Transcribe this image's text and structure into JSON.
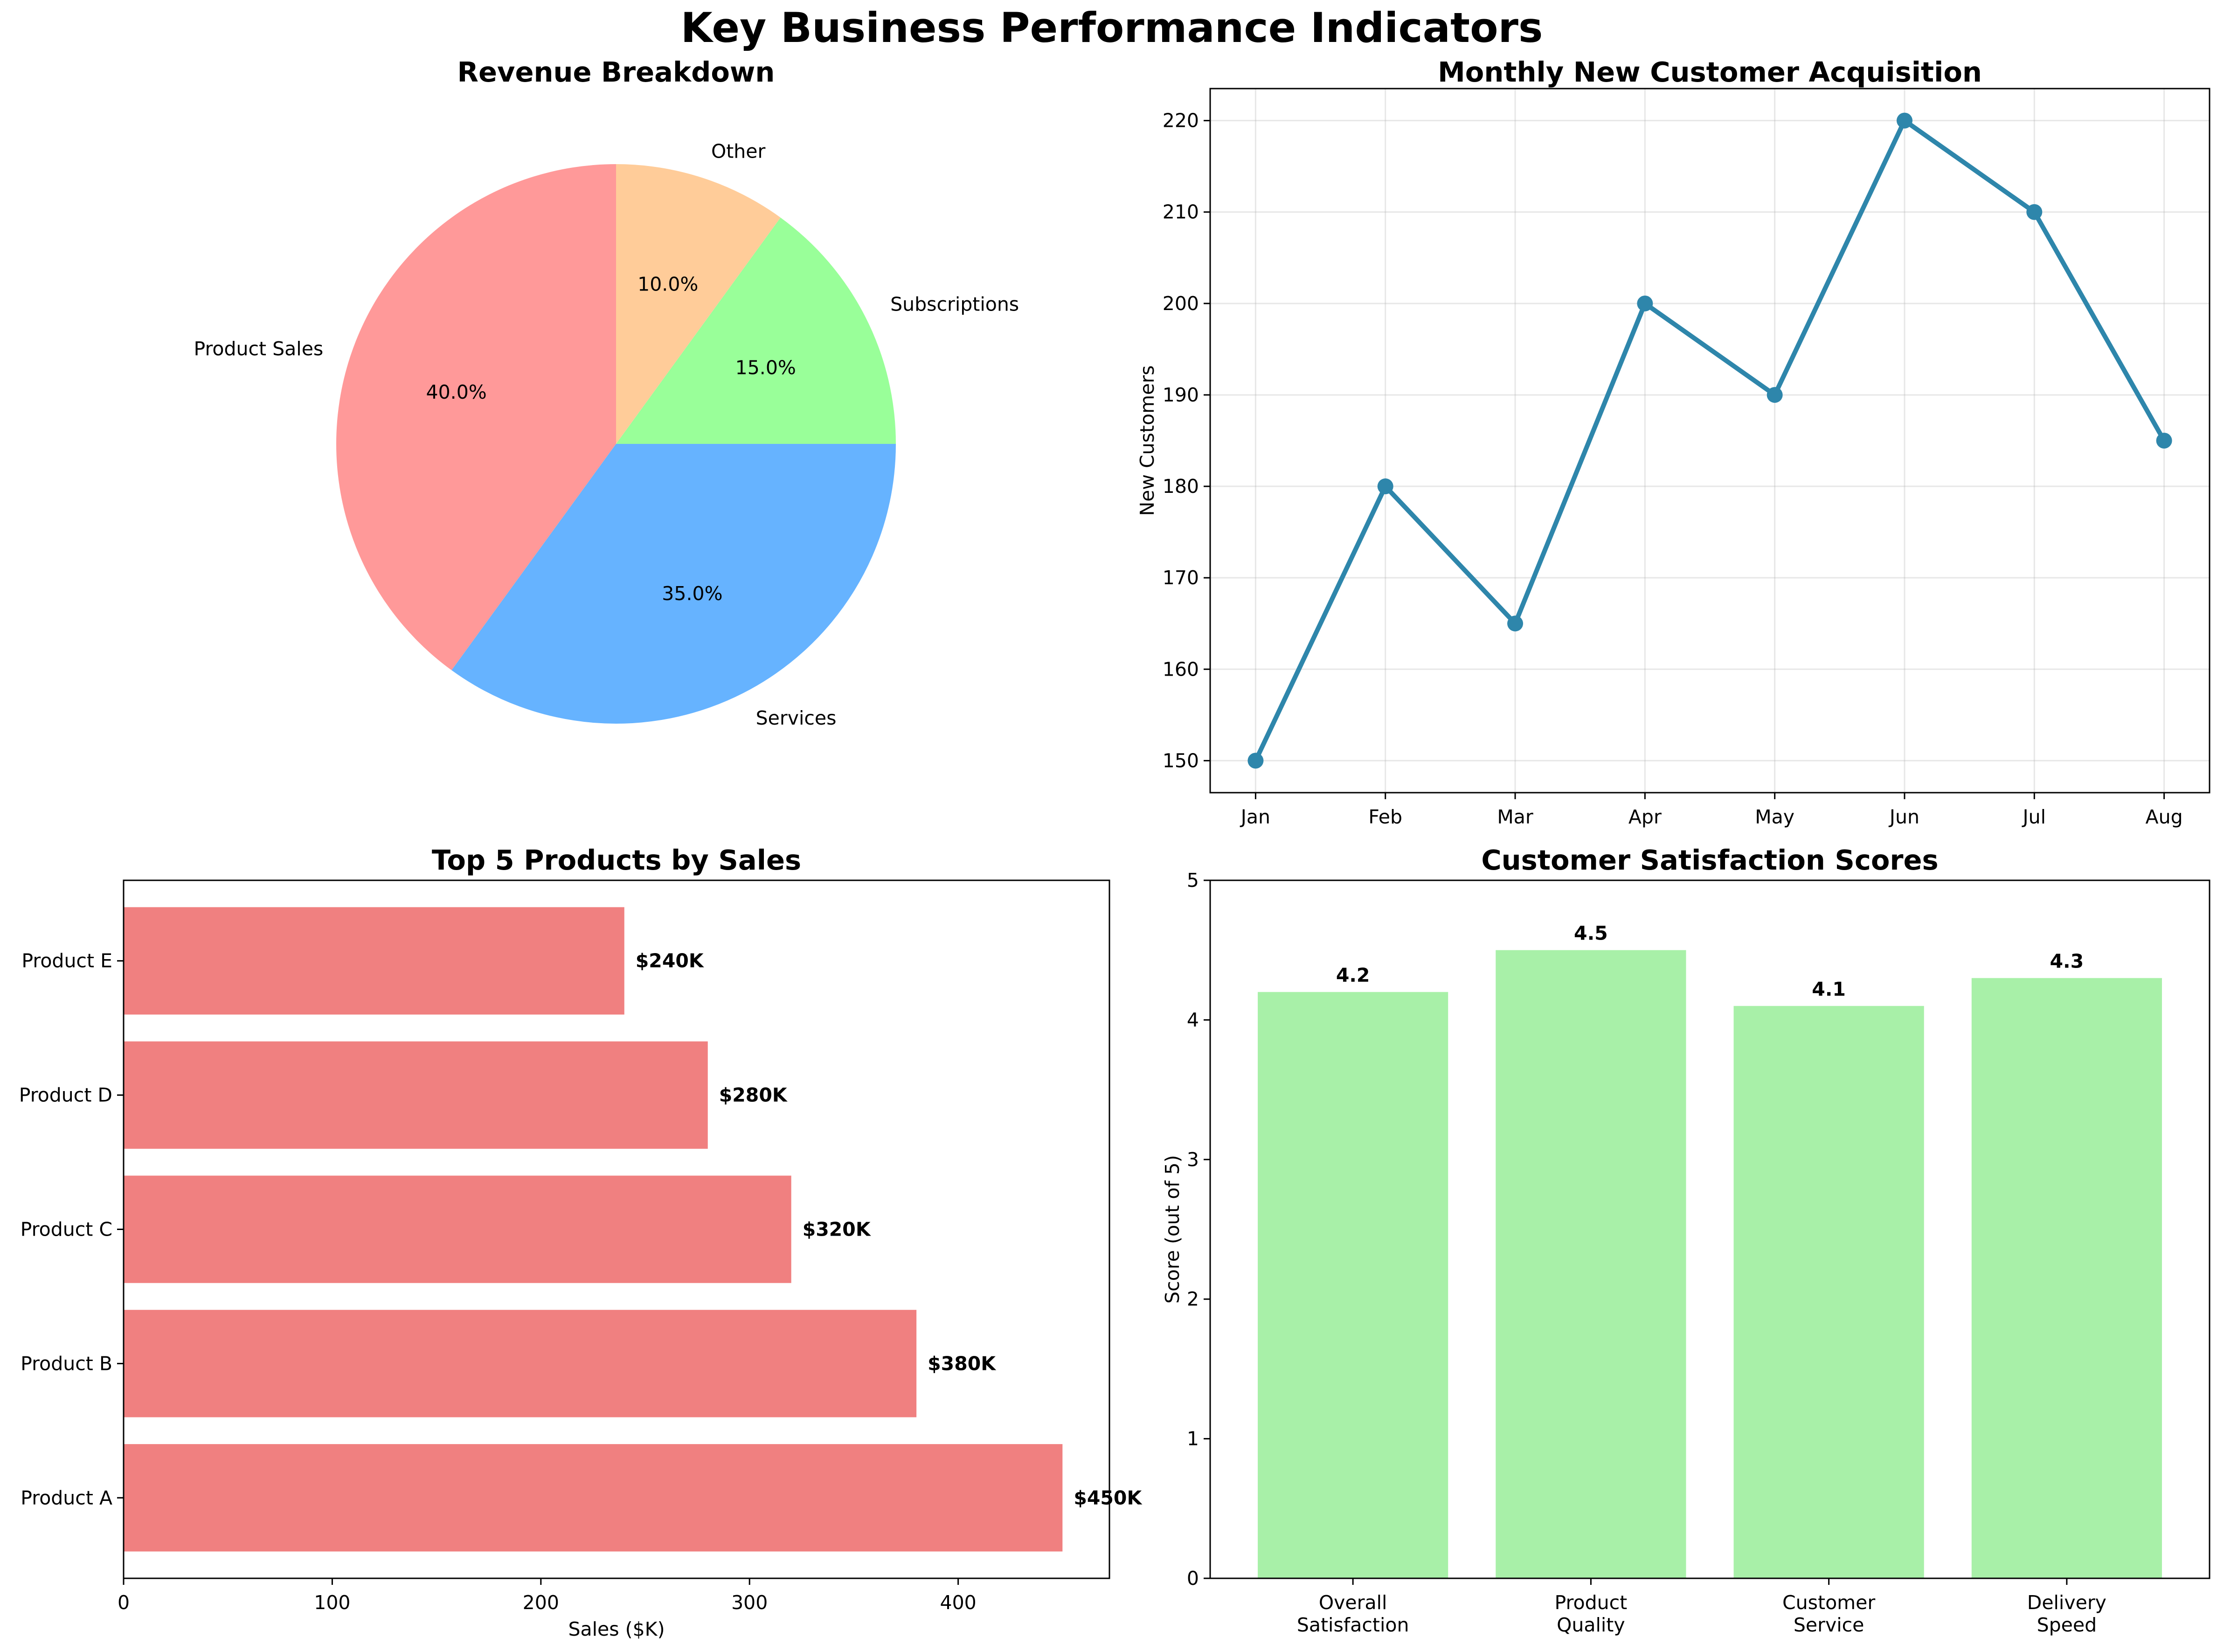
{
  "figure": {
    "title": "Key Business Performance Indicators"
  },
  "chart_data": [
    {
      "type": "pie",
      "title": "Revenue Breakdown",
      "labels": [
        "Product Sales",
        "Services",
        "Subscriptions",
        "Other"
      ],
      "values": [
        40,
        35,
        15,
        10
      ],
      "pct_labels": [
        "40.0%",
        "35.0%",
        "15.0%",
        "10.0%"
      ],
      "colors": [
        "#ff9999",
        "#66b3ff",
        "#99ff99",
        "#ffcc99"
      ],
      "start_angle_deg": 90,
      "direction": "counterclockwise"
    },
    {
      "type": "line",
      "title": "Monthly New Customer Acquisition",
      "xlabel": "",
      "ylabel": "New Customers",
      "categories": [
        "Jan",
        "Feb",
        "Mar",
        "Apr",
        "May",
        "Jun",
        "Jul",
        "Aug"
      ],
      "values": [
        150,
        180,
        165,
        200,
        190,
        220,
        210,
        185
      ],
      "ylim": [
        146.5,
        223.5
      ],
      "yticks": [
        150,
        160,
        170,
        180,
        190,
        200,
        210,
        220
      ],
      "color": "#2e86ab",
      "grid": true,
      "markers": true
    },
    {
      "type": "bar",
      "orientation": "horizontal",
      "title": "Top 5 Products by Sales",
      "xlabel": "Sales ($K)",
      "ylabel": "",
      "categories": [
        "Product A",
        "Product B",
        "Product C",
        "Product D",
        "Product E"
      ],
      "values": [
        450,
        380,
        320,
        280,
        240
      ],
      "value_labels": [
        "$450K",
        "$380K",
        "$320K",
        "$280K",
        "$240K"
      ],
      "xlim": [
        0,
        472.5
      ],
      "xticks": [
        0,
        100,
        200,
        300,
        400
      ],
      "color": "#f08080"
    },
    {
      "type": "bar",
      "title": "Customer Satisfaction Scores",
      "xlabel": "",
      "ylabel": "Score (out of 5)",
      "categories": [
        "Overall\nSatisfaction",
        "Product\nQuality",
        "Customer\nService",
        "Delivery\nSpeed"
      ],
      "values": [
        4.2,
        4.5,
        4.1,
        4.3
      ],
      "value_labels": [
        "4.2",
        "4.5",
        "4.1",
        "4.3"
      ],
      "ylim": [
        0,
        5
      ],
      "yticks": [
        0,
        1,
        2,
        3,
        4,
        5
      ],
      "color": "#a8f0a8"
    }
  ]
}
